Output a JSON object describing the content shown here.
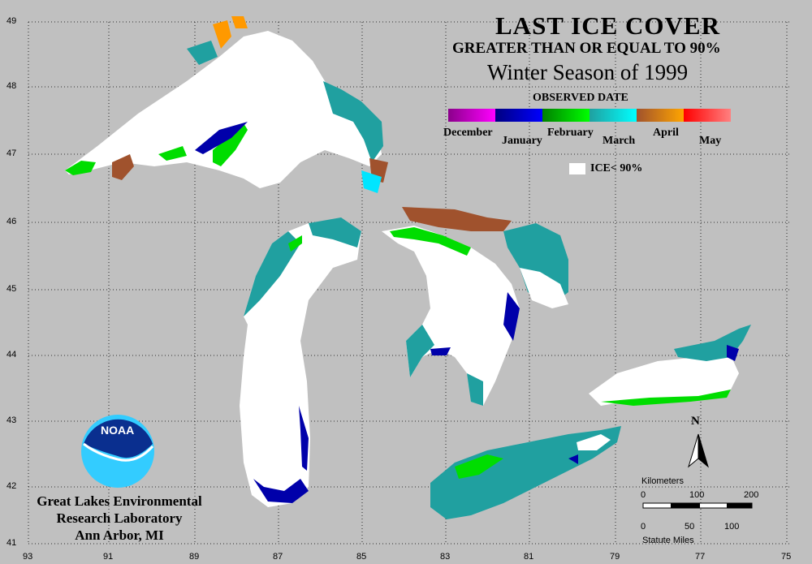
{
  "title": "LAST ICE COVER",
  "subtitle": "GREATER THAN OR EQUAL TO 90%",
  "season": "Winter Season of 1999",
  "legend": {
    "heading": "OBSERVED DATE",
    "months": [
      "December",
      "January",
      "February",
      "March",
      "April",
      "May"
    ],
    "colors": [
      [
        "#8b008b",
        "#ff00ff"
      ],
      [
        "#000080",
        "#0000ff"
      ],
      [
        "#008000",
        "#00ff00"
      ],
      [
        "#20a0a0",
        "#00ffff"
      ],
      [
        "#a0522d",
        "#ffa500"
      ],
      [
        "#ff0000",
        "#ff8080"
      ]
    ],
    "ice_label": "ICE< 90%"
  },
  "latitudes": [
    "49",
    "48",
    "47",
    "46",
    "45",
    "44",
    "43",
    "42",
    "41"
  ],
  "longitudes": [
    "93",
    "91",
    "89",
    "87",
    "85",
    "83",
    "81",
    "79",
    "77",
    "75"
  ],
  "credit": [
    "Great Lakes Environmental",
    "Research Laboratory",
    "Ann Arbor, MI"
  ],
  "logo_text": "NOAA",
  "north": "N",
  "scale": {
    "km_title": "Kilometers",
    "km_ticks": [
      "0",
      "100",
      "200"
    ],
    "mi_ticks": [
      "0",
      "50",
      "100"
    ],
    "mi_title": "Statute Miles"
  }
}
